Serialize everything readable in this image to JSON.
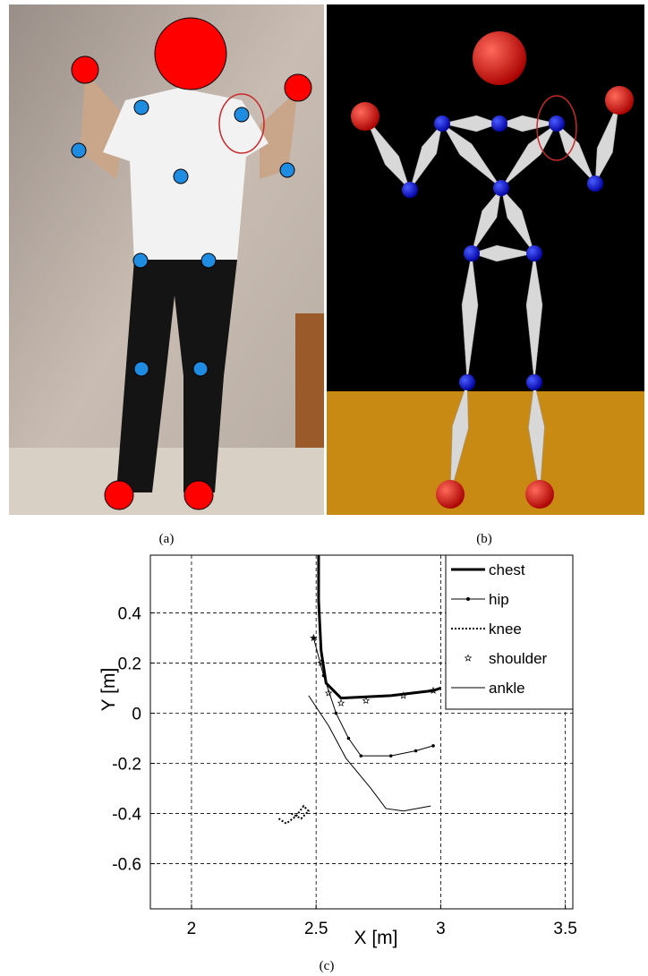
{
  "panels": {
    "a": "(a)",
    "b": "(b)",
    "c": "(c)"
  },
  "chart_data": {
    "type": "line",
    "x_label": "X [m]",
    "y_label": "Y [m]",
    "xlim": [
      1.835,
      3.53
    ],
    "ylim": [
      -0.78,
      0.63
    ],
    "xticks": [
      2,
      2.5,
      3,
      3.5
    ],
    "yticks": [
      -0.6,
      -0.4,
      -0.2,
      0,
      0.2,
      0.4
    ],
    "grid": true,
    "legend": "upper right",
    "series": [
      {
        "name": "chest",
        "color": "#000000",
        "width": 3,
        "marker": "none",
        "x": [
          2.51,
          2.51,
          2.52,
          2.54,
          2.6,
          2.8,
          2.97,
          3.0
        ],
        "values": [
          0.63,
          0.45,
          0.25,
          0.12,
          0.06,
          0.07,
          0.09,
          0.1
        ]
      },
      {
        "name": "hip",
        "color": "#000000",
        "width": 1,
        "marker": "dot",
        "x": [
          2.49,
          2.53,
          2.58,
          2.63,
          2.68,
          2.8,
          2.9,
          2.97
        ],
        "values": [
          0.3,
          0.15,
          0.0,
          -0.1,
          -0.17,
          -0.17,
          -0.15,
          -0.13
        ]
      },
      {
        "name": "knee",
        "color": "#000000",
        "width": 2,
        "dash": "2,2",
        "marker": "none",
        "x": [
          2.35,
          2.38,
          2.42,
          2.45,
          2.47,
          2.44,
          2.4
        ],
        "values": [
          -0.42,
          -0.44,
          -0.41,
          -0.37,
          -0.39,
          -0.42,
          -0.4
        ]
      },
      {
        "name": "shoulder",
        "color": "#000000",
        "width": 0,
        "marker": "star",
        "x": [
          2.49,
          2.52,
          2.55,
          2.6,
          2.7,
          2.85,
          2.97
        ],
        "values": [
          0.3,
          0.2,
          0.08,
          0.04,
          0.05,
          0.07,
          0.09
        ]
      },
      {
        "name": "ankle",
        "color": "#000000",
        "width": 1,
        "marker": "none",
        "x": [
          2.47,
          2.55,
          2.62,
          2.72,
          2.78,
          2.85,
          2.96
        ],
        "values": [
          0.07,
          -0.05,
          -0.18,
          -0.3,
          -0.38,
          -0.39,
          -0.37
        ]
      }
    ]
  }
}
